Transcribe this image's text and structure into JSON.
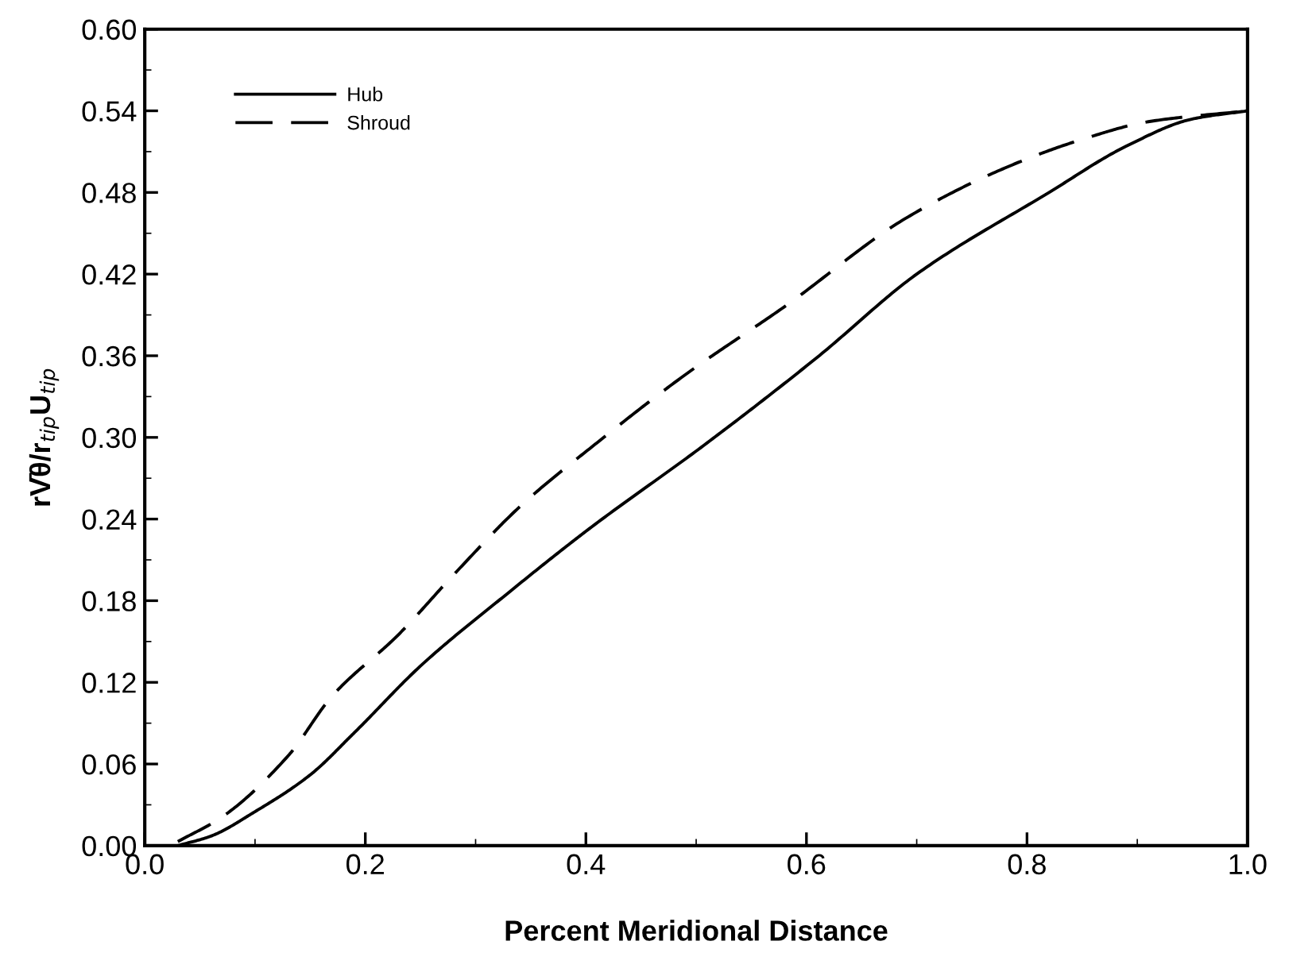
{
  "chart_data": {
    "type": "line",
    "xlabel": "Percent Meridional Distance",
    "ylabel": "rV̄θ/r$_{tip}$U$_{tip}$",
    "xlim": [
      0.0,
      1.0
    ],
    "xticks": [
      {
        "value": 0.0,
        "label": "0.0"
      },
      {
        "value": 0.2,
        "label": "0.2"
      },
      {
        "value": 0.4,
        "label": "0.4"
      },
      {
        "value": 0.6,
        "label": "0.6"
      },
      {
        "value": 0.8,
        "label": "0.8"
      },
      {
        "value": 1.0,
        "label": "1.0"
      }
    ],
    "ylim": [
      0.0,
      0.6
    ],
    "yticks": [
      {
        "value": 0.0,
        "label": "0.00"
      },
      {
        "value": 0.06,
        "label": "0.06"
      },
      {
        "value": 0.12,
        "label": "0.12"
      },
      {
        "value": 0.18,
        "label": "0.18"
      },
      {
        "value": 0.24,
        "label": "0.24"
      },
      {
        "value": 0.3,
        "label": "0.30"
      },
      {
        "value": 0.36,
        "label": "0.36"
      },
      {
        "value": 0.42,
        "label": "0.42"
      },
      {
        "value": 0.48,
        "label": "0.48"
      },
      {
        "value": 0.54,
        "label": "0.54"
      },
      {
        "value": 0.6,
        "label": "0.60"
      }
    ],
    "grid": false,
    "legend": "top left",
    "marker": "none",
    "series": [
      {
        "name": "Hub",
        "color": "#000000",
        "line_style": "solid",
        "x": [
          0.03,
          0.06,
          0.1,
          0.15,
          0.19,
          0.25,
          0.33,
          0.4,
          0.51,
          0.61,
          0.7,
          0.82,
          0.89,
          0.95,
          1.0
        ],
        "values": [
          0.0,
          0.007,
          0.025,
          0.052,
          0.083,
          0.132,
          0.186,
          0.231,
          0.296,
          0.359,
          0.42,
          0.48,
          0.514,
          0.534,
          0.54
        ]
      },
      {
        "name": "Shroud",
        "color": "#000000",
        "line_style": "dashed",
        "x": [
          0.03,
          0.07,
          0.13,
          0.17,
          0.23,
          0.28,
          0.34,
          0.41,
          0.49,
          0.58,
          0.69,
          0.78,
          0.85,
          0.91,
          1.0
        ],
        "values": [
          0.003,
          0.021,
          0.066,
          0.11,
          0.155,
          0.199,
          0.249,
          0.296,
          0.346,
          0.396,
          0.461,
          0.498,
          0.519,
          0.532,
          0.54
        ]
      }
    ]
  }
}
